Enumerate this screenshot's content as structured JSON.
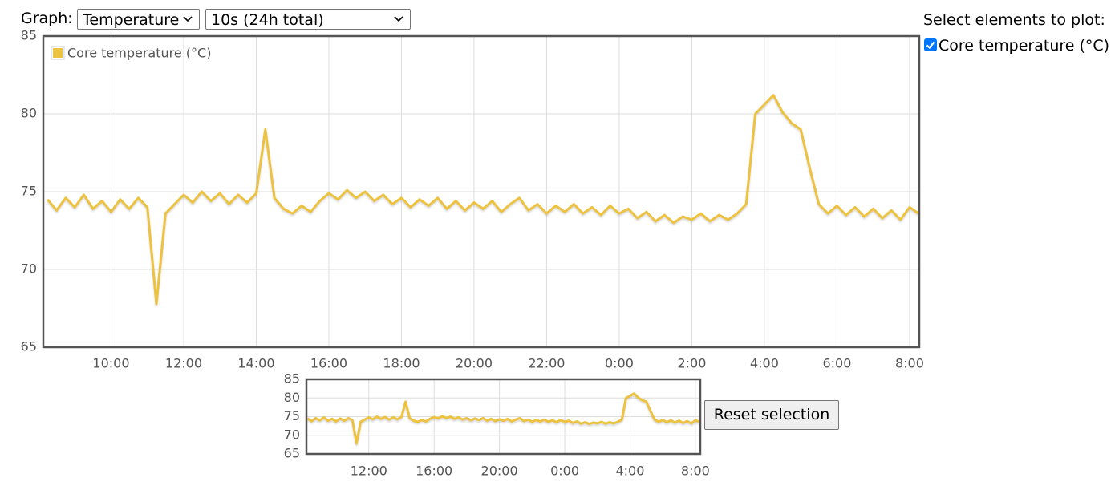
{
  "controls": {
    "graph_label": "Graph:",
    "graph_select": "Temperature",
    "interval_select": "10s (24h total)",
    "elements_title": "Select elements to plot:",
    "reset_button": "Reset selection"
  },
  "chart_data": [
    {
      "type": "line",
      "legend": "upper left",
      "grid": true,
      "xlim": [
        8.133,
        32.267
      ],
      "ylim": [
        65,
        85
      ],
      "xticks": [
        {
          "value": 10,
          "label": "10:00"
        },
        {
          "value": 12,
          "label": "12:00"
        },
        {
          "value": 14,
          "label": "14:00"
        },
        {
          "value": 16,
          "label": "16:00"
        },
        {
          "value": 18,
          "label": "18:00"
        },
        {
          "value": 20,
          "label": "20:00"
        },
        {
          "value": 22,
          "label": "22:00"
        },
        {
          "value": 24,
          "label": "0:00"
        },
        {
          "value": 26,
          "label": "2:00"
        },
        {
          "value": 28,
          "label": "4:00"
        },
        {
          "value": 30,
          "label": "6:00"
        },
        {
          "value": 32,
          "label": "8:00"
        }
      ],
      "yticks": [
        65,
        70,
        75,
        80,
        85
      ],
      "x": [
        8.25,
        8.5,
        8.75,
        9.0,
        9.25,
        9.5,
        9.75,
        10.0,
        10.25,
        10.5,
        10.75,
        11.0,
        11.25,
        11.5,
        11.75,
        12.0,
        12.25,
        12.5,
        12.75,
        13.0,
        13.25,
        13.5,
        13.75,
        14.0,
        14.25,
        14.5,
        14.75,
        15.0,
        15.25,
        15.5,
        15.75,
        16.0,
        16.25,
        16.5,
        16.75,
        17.0,
        17.25,
        17.5,
        17.75,
        18.0,
        18.25,
        18.5,
        18.75,
        19.0,
        19.25,
        19.5,
        19.75,
        20.0,
        20.25,
        20.5,
        20.75,
        21.0,
        21.25,
        21.5,
        21.75,
        22.0,
        22.25,
        22.5,
        22.75,
        23.0,
        23.25,
        23.5,
        23.75,
        24.0,
        24.25,
        24.5,
        24.75,
        25.0,
        25.25,
        25.5,
        25.75,
        26.0,
        26.25,
        26.5,
        26.75,
        27.0,
        27.25,
        27.5,
        27.75,
        28.0,
        28.25,
        28.5,
        28.75,
        29.0,
        29.25,
        29.5,
        29.75,
        30.0,
        30.25,
        30.5,
        30.75,
        31.0,
        31.25,
        31.5,
        31.75,
        32.0,
        32.25
      ],
      "series": [
        {
          "name": "Core temperature (°C)",
          "color": "#edc240",
          "values": [
            74.5,
            73.8,
            74.6,
            74.0,
            74.8,
            73.9,
            74.4,
            73.7,
            74.5,
            73.9,
            74.6,
            74.0,
            67.8,
            73.6,
            74.2,
            74.8,
            74.3,
            75.0,
            74.4,
            74.9,
            74.2,
            74.8,
            74.3,
            74.9,
            79.0,
            74.6,
            73.9,
            73.6,
            74.1,
            73.7,
            74.4,
            74.9,
            74.5,
            75.1,
            74.6,
            75.0,
            74.4,
            74.8,
            74.2,
            74.6,
            74.0,
            74.5,
            74.1,
            74.6,
            73.9,
            74.4,
            73.8,
            74.3,
            73.9,
            74.4,
            73.7,
            74.2,
            74.6,
            73.8,
            74.2,
            73.6,
            74.1,
            73.7,
            74.2,
            73.6,
            74.0,
            73.5,
            74.1,
            73.6,
            73.9,
            73.3,
            73.7,
            73.1,
            73.5,
            73.0,
            73.4,
            73.2,
            73.6,
            73.1,
            73.5,
            73.2,
            73.6,
            74.2,
            80.0,
            80.6,
            81.2,
            80.1,
            79.4,
            79.0,
            76.5,
            74.2,
            73.6,
            74.1,
            73.5,
            74.0,
            73.4,
            73.9,
            73.3,
            73.8,
            73.2,
            74.0,
            73.6
          ]
        }
      ]
    },
    {
      "type": "line",
      "grid": true,
      "xlim": [
        8.18,
        32.3
      ],
      "ylim": [
        65,
        85
      ],
      "xticks": [
        {
          "value": 12,
          "label": "12:00"
        },
        {
          "value": 16,
          "label": "16:00"
        },
        {
          "value": 20,
          "label": "20:00"
        },
        {
          "value": 24,
          "label": "0:00"
        },
        {
          "value": 28,
          "label": "4:00"
        },
        {
          "value": 32,
          "label": "8:00"
        }
      ],
      "yticks": [
        65,
        70,
        75,
        80,
        85
      ]
    }
  ]
}
